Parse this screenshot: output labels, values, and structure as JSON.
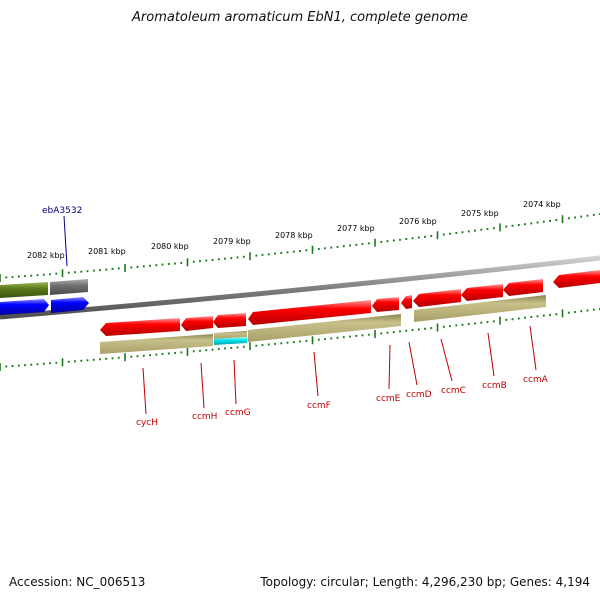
{
  "title": "Aromatoleum aromaticum EbN1, complete genome",
  "footer": {
    "accession": "Accession: NC_006513",
    "topology": "Topology: circular; Length: 4,296,230 bp; Genes: 4,194"
  },
  "colors": {
    "gene_red": "#ff0000",
    "gene_blue": "#0000ff",
    "gene_green": "#5a7a1a",
    "gene_gray": "#707070",
    "gene_cyan": "#00e5ee",
    "gene_olive": "#b8b07a",
    "label_red": "#c00000",
    "label_blue": "#000080",
    "tick_green": "#1a7a1a"
  },
  "kbp_ticks": [
    "2082 kbp",
    "2081 kbp",
    "2080 kbp",
    "2079 kbp",
    "2078 kbp",
    "2077 kbp",
    "2076 kbp",
    "2075 kbp",
    "2074 kbp"
  ],
  "gene_labels": [
    {
      "text": "ebA3532",
      "color": "blue"
    },
    {
      "text": "cycH",
      "color": "red"
    },
    {
      "text": "ccmH",
      "color": "red"
    },
    {
      "text": "ccmG",
      "color": "red"
    },
    {
      "text": "ccmF",
      "color": "red"
    },
    {
      "text": "ccmE",
      "color": "red"
    },
    {
      "text": "ccmD",
      "color": "red"
    },
    {
      "text": "ccmC",
      "color": "red"
    },
    {
      "text": "ccmB",
      "color": "red"
    },
    {
      "text": "ccmA",
      "color": "red"
    }
  ]
}
